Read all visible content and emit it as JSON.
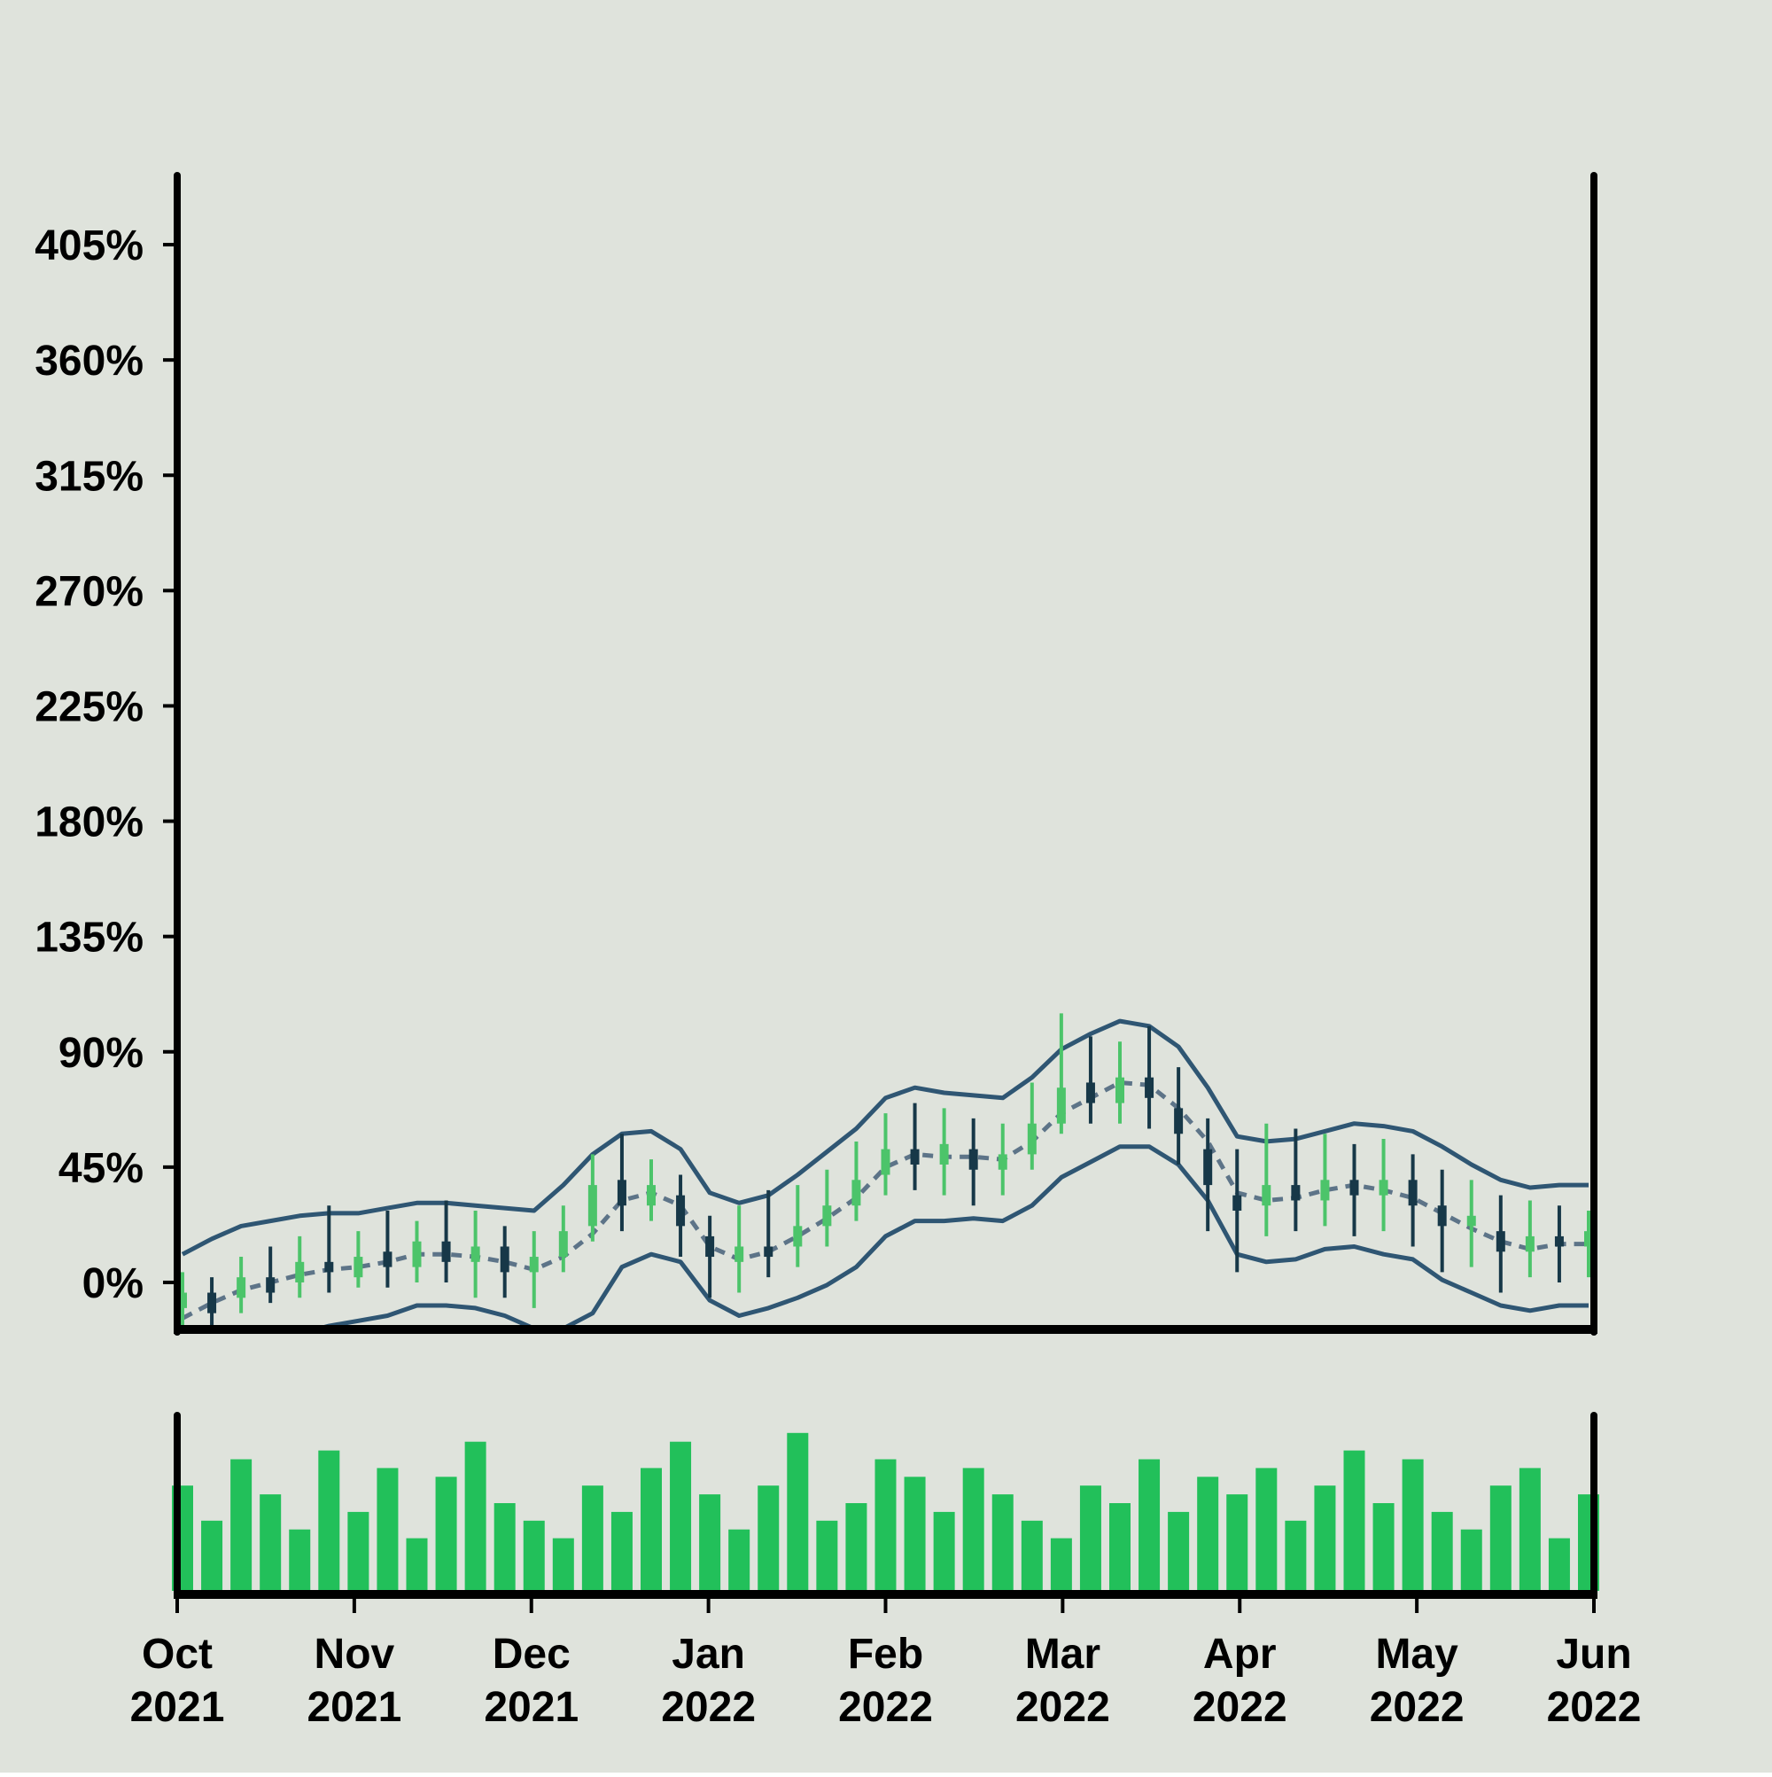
{
  "chart_data": {
    "type": "ohlc",
    "background": "#dfe3dc",
    "up_color": "#4cc46a",
    "down_color": "#173848",
    "band_color": "#2f5673",
    "middle_color": "#5d7488",
    "volume_color": "#22c05a",
    "xlim": [
      "2021-10",
      "2022-06"
    ],
    "xticks": [
      {
        "value": "2021-10",
        "label": "Oct 2021"
      },
      {
        "value": "2021-11",
        "label": "Nov 2021"
      },
      {
        "value": "2021-12",
        "label": "Dec 2021"
      },
      {
        "value": "2022-01",
        "label": "Jan 2022"
      },
      {
        "value": "2022-02",
        "label": "Feb 2022"
      },
      {
        "value": "2022-03",
        "label": "Mar 2022"
      },
      {
        "value": "2022-04",
        "label": "Apr 2022"
      },
      {
        "value": "2022-05",
        "label": "May 2022"
      },
      {
        "value": "2022-06",
        "label": "Jun 2022"
      }
    ],
    "ylim": [
      -18,
      432
    ],
    "yticks": [
      {
        "value": 0,
        "label": "0%"
      },
      {
        "value": 45,
        "label": "45%"
      },
      {
        "value": 90,
        "label": "90%"
      },
      {
        "value": 135,
        "label": "135%"
      },
      {
        "value": 180,
        "label": "180%"
      },
      {
        "value": 225,
        "label": "225%"
      },
      {
        "value": 270,
        "label": "270%"
      },
      {
        "value": 315,
        "label": "315%"
      },
      {
        "value": 360,
        "label": "360%"
      },
      {
        "value": 405,
        "label": "405%"
      }
    ],
    "open": [
      -10,
      -4,
      -6,
      2,
      0,
      8,
      2,
      12,
      6,
      16,
      8,
      14,
      4,
      10,
      22,
      40,
      30,
      34,
      18,
      8,
      14,
      14,
      22,
      30,
      42,
      52,
      46,
      52,
      44,
      50,
      62,
      78,
      70,
      80,
      68,
      52,
      34,
      30,
      38,
      32,
      40,
      34,
      40,
      30,
      22,
      20,
      12,
      18,
      14
    ],
    "high": [
      4,
      2,
      10,
      14,
      18,
      30,
      20,
      28,
      24,
      32,
      28,
      22,
      20,
      30,
      50,
      58,
      48,
      42,
      26,
      30,
      36,
      38,
      44,
      55,
      66,
      70,
      68,
      64,
      62,
      78,
      105,
      96,
      94,
      100,
      84,
      64,
      52,
      62,
      60,
      58,
      54,
      56,
      50,
      44,
      40,
      34,
      32,
      30,
      28
    ],
    "low": [
      -18,
      -20,
      -12,
      -8,
      -6,
      -4,
      -2,
      -2,
      0,
      0,
      -6,
      -6,
      -10,
      4,
      16,
      20,
      24,
      10,
      -6,
      -4,
      2,
      6,
      14,
      24,
      34,
      36,
      34,
      30,
      34,
      44,
      58,
      62,
      62,
      60,
      46,
      20,
      4,
      18,
      20,
      22,
      18,
      20,
      14,
      4,
      6,
      -4,
      2,
      0,
      2
    ],
    "close": [
      -4,
      -12,
      2,
      -4,
      8,
      4,
      10,
      6,
      16,
      8,
      14,
      4,
      10,
      20,
      38,
      30,
      38,
      22,
      10,
      14,
      10,
      22,
      30,
      40,
      52,
      46,
      54,
      44,
      50,
      62,
      76,
      70,
      80,
      72,
      58,
      38,
      28,
      38,
      32,
      40,
      34,
      40,
      30,
      22,
      26,
      12,
      18,
      14,
      20
    ],
    "bands": {
      "upper": [
        11,
        17,
        22,
        24,
        26,
        27,
        27,
        29,
        31,
        31,
        30,
        29,
        28,
        38,
        50,
        58,
        59,
        52,
        35,
        31,
        34,
        42,
        51,
        60,
        72,
        76,
        74,
        73,
        72,
        80,
        91,
        97,
        102,
        100,
        92,
        76,
        57,
        55,
        56,
        59,
        62,
        61,
        59,
        53,
        46,
        40,
        37,
        38,
        38
      ],
      "middle": [
        -14,
        -8,
        -3,
        0,
        3,
        5,
        6,
        8,
        11,
        11,
        10,
        8,
        5,
        10,
        19,
        32,
        35,
        30,
        14,
        9,
        12,
        18,
        25,
        33,
        45,
        50,
        49,
        49,
        48,
        55,
        66,
        72,
        78,
        77,
        68,
        55,
        35,
        32,
        33,
        36,
        38,
        36,
        33,
        27,
        21,
        16,
        13,
        15,
        15
      ],
      "lower": [
        -39,
        -33,
        -28,
        -24,
        -20,
        -17,
        -15,
        -13,
        -9,
        -9,
        -10,
        -13,
        -18,
        -18,
        -12,
        6,
        11,
        8,
        -7,
        -13,
        -10,
        -6,
        -1,
        6,
        18,
        24,
        24,
        25,
        24,
        30,
        41,
        47,
        53,
        53,
        46,
        32,
        11,
        8,
        9,
        13,
        14,
        11,
        9,
        1,
        -4,
        -9,
        -11,
        -9,
        -9
      ]
    },
    "volume_ylim": [
      0,
      100
    ],
    "volume": [
      60,
      40,
      75,
      55,
      35,
      80,
      45,
      70,
      30,
      65,
      85,
      50,
      40,
      30,
      60,
      45,
      70,
      85,
      55,
      35,
      60,
      90,
      40,
      50,
      75,
      65,
      45,
      70,
      55,
      40,
      30,
      60,
      50,
      75,
      45,
      65,
      55,
      70,
      40,
      60,
      80,
      50,
      75,
      45,
      35,
      60,
      70,
      30,
      55
    ]
  }
}
